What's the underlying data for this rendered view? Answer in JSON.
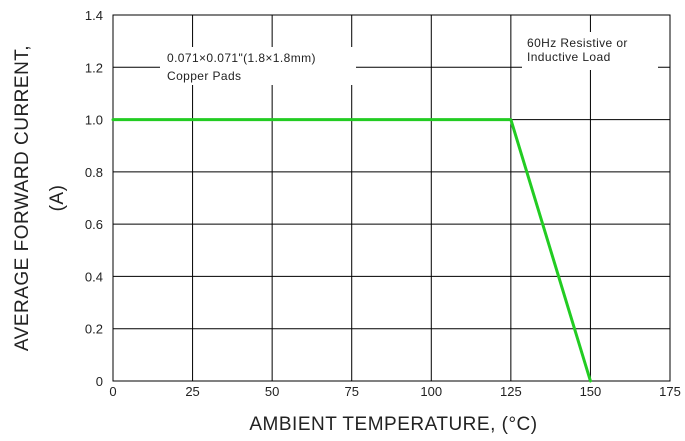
{
  "chart_data": {
    "type": "line",
    "title": "",
    "xlabel": "AMBIENT TEMPERATURE, (°C)",
    "ylabel_line1": "AVERAGE FORWARD CURRENT,",
    "ylabel_line2": "(A)",
    "xlim": [
      0,
      175
    ],
    "ylim": [
      0,
      1.4
    ],
    "x_ticks": [
      0,
      25,
      50,
      75,
      100,
      125,
      150,
      175
    ],
    "x_tick_labels": [
      "0",
      "25",
      "50",
      "75",
      "100",
      "125",
      "150",
      "175"
    ],
    "y_ticks": [
      0,
      0.2,
      0.4,
      0.6,
      0.8,
      1.0,
      1.2,
      1.4
    ],
    "y_tick_labels": [
      "0",
      "0.2",
      "0.4",
      "0.6",
      "0.8",
      "1.0",
      "1.2",
      "1.4"
    ],
    "grid": true,
    "series": [
      {
        "color": "#22cc22",
        "x": [
          0,
          125,
          150
        ],
        "y": [
          1.0,
          1.0,
          0.0
        ]
      }
    ],
    "annotations": [
      {
        "lines": [
          "0.071×0.071\"(1.8×1.8mm)",
          "Copper Pads"
        ]
      },
      {
        "lines": [
          "60Hz Resistive or",
          "Inductive Load"
        ]
      }
    ]
  }
}
